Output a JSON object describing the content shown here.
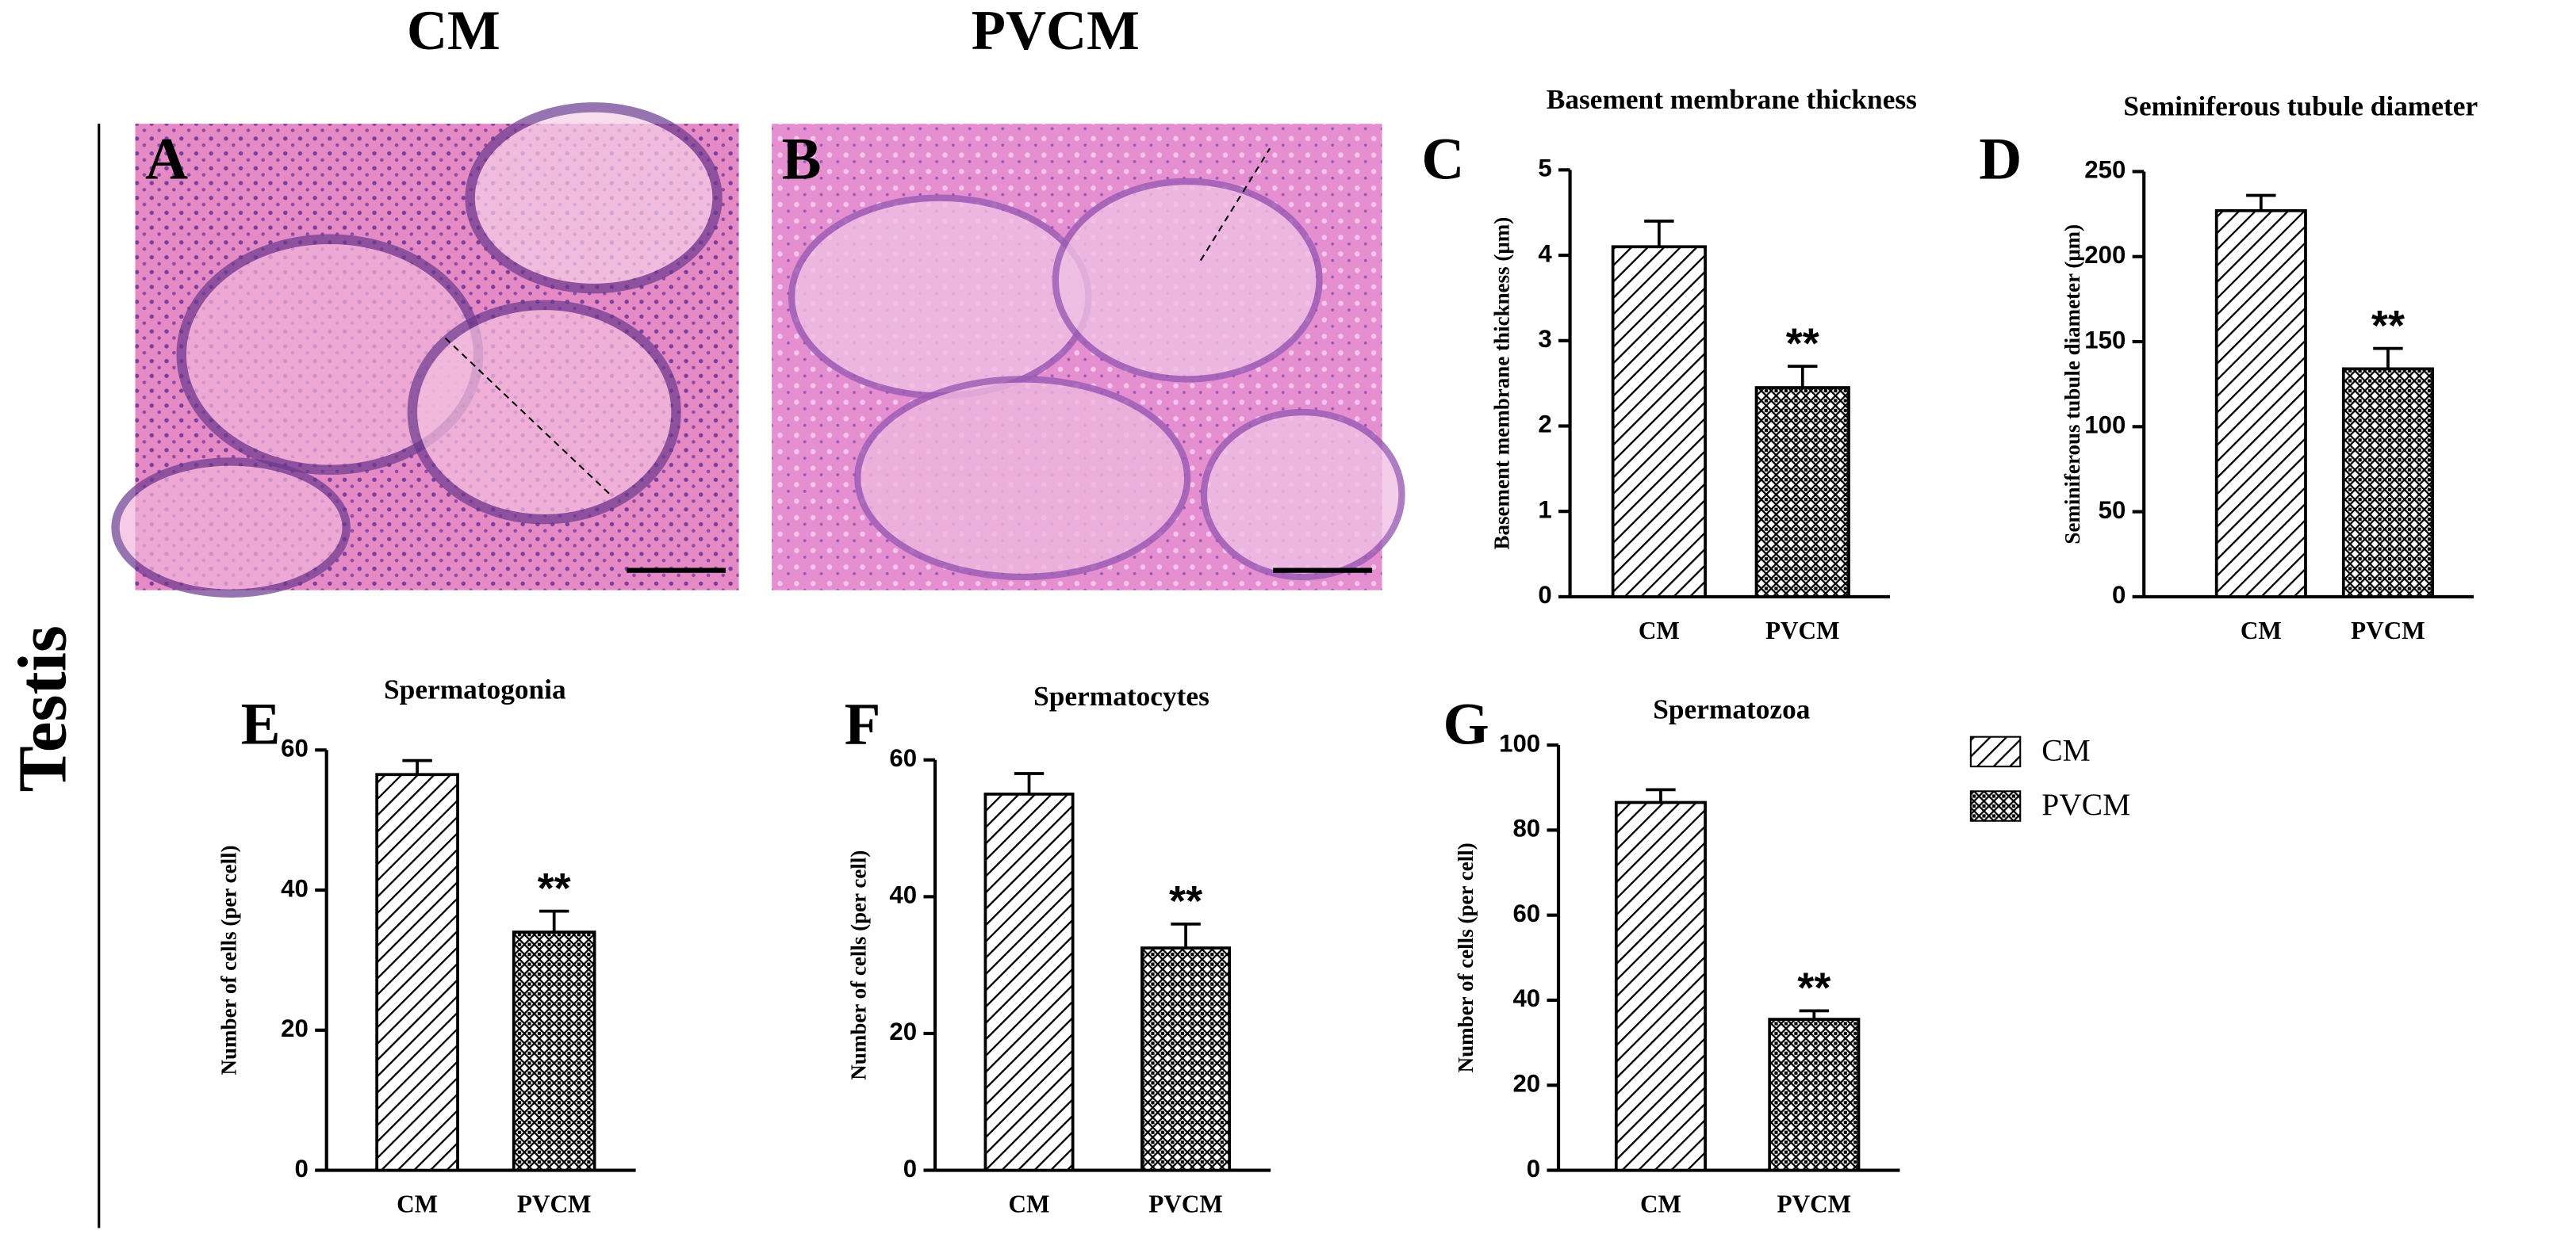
{
  "column_labels": [
    "CM",
    "PVCM"
  ],
  "row_label": "Testis",
  "micrographs": [
    {
      "panel": "A"
    },
    {
      "panel": "B"
    }
  ],
  "legend": {
    "entries": [
      "CM",
      "PVCM"
    ],
    "patterns": [
      "diagonal",
      "checker"
    ]
  },
  "chart_data": [
    {
      "type": "bar",
      "panel": "C",
      "title": "Basement membrane thickness",
      "y_label": "Basement membrane thickness (μm)",
      "categories": [
        "CM",
        "PVCM"
      ],
      "values": [
        4.1,
        2.45
      ],
      "errors": [
        0.3,
        0.25
      ],
      "patterns": [
        "diagonal",
        "checker"
      ],
      "ylim": [
        0,
        5
      ],
      "yticks": [
        0,
        1,
        2,
        3,
        4,
        5
      ],
      "annotation": "**"
    },
    {
      "type": "bar",
      "panel": "D",
      "title": "Seminiferous tubule diameter",
      "y_label": "Seminiferous tubule diameter (μm)",
      "categories": [
        "CM",
        "PVCM"
      ],
      "values": [
        227,
        134
      ],
      "errors": [
        9,
        12
      ],
      "patterns": [
        "diagonal",
        "checker"
      ],
      "ylim": [
        0,
        250
      ],
      "yticks": [
        0,
        50,
        100,
        150,
        200,
        250
      ],
      "annotation": "**"
    },
    {
      "type": "bar",
      "panel": "E",
      "title": "Spermatogonia",
      "y_label": "Number of cells (per cell)",
      "categories": [
        "CM",
        "PVCM"
      ],
      "values": [
        56.5,
        34
      ],
      "errors": [
        2,
        3
      ],
      "patterns": [
        "diagonal",
        "checker"
      ],
      "ylim": [
        0,
        60
      ],
      "yticks": [
        0,
        20,
        40,
        60
      ],
      "annotation": "**"
    },
    {
      "type": "bar",
      "panel": "F",
      "title": "Spermatocytes",
      "y_label": "Number of cells (per cell)",
      "categories": [
        "CM",
        "PVCM"
      ],
      "values": [
        55,
        32.5
      ],
      "errors": [
        3,
        3.5
      ],
      "patterns": [
        "diagonal",
        "checker"
      ],
      "ylim": [
        0,
        60
      ],
      "yticks": [
        0,
        20,
        40,
        60
      ],
      "annotation": "**"
    },
    {
      "type": "bar",
      "panel": "G",
      "title": "Spermatozoa",
      "y_label": "Number of cells (per cell)",
      "categories": [
        "CM",
        "PVCM"
      ],
      "values": [
        86.5,
        35.5
      ],
      "errors": [
        3,
        2
      ],
      "patterns": [
        "diagonal",
        "checker"
      ],
      "ylim": [
        0,
        100
      ],
      "yticks": [
        0,
        20,
        40,
        60,
        80,
        100
      ],
      "annotation": "**"
    }
  ]
}
